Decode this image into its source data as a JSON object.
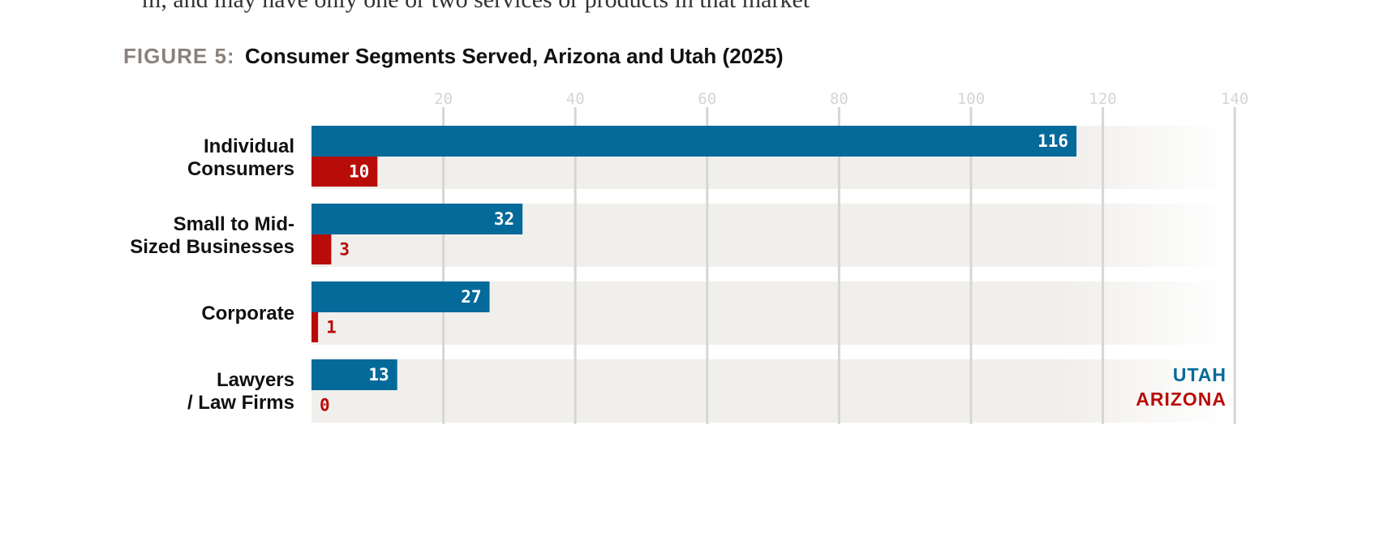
{
  "page": {
    "cut_text": "m, and may have only one or two services or products in that market"
  },
  "chart_data": {
    "type": "bar",
    "orientation": "horizontal",
    "title_prefix": "FIGURE 5:",
    "title": "Consumer Segments Served, Arizona and Utah (2025)",
    "categories": [
      [
        "Individual",
        "Consumers"
      ],
      [
        "Small to Mid-",
        "Sized Businesses"
      ],
      [
        "Corporate"
      ],
      [
        "Lawyers",
        "/ Law Firms"
      ]
    ],
    "series": [
      {
        "name": "UTAH",
        "color": "#046a99",
        "values": [
          116,
          32,
          27,
          13
        ]
      },
      {
        "name": "ARIZONA",
        "color": "#b80c09",
        "values": [
          10,
          3,
          1,
          0
        ]
      }
    ],
    "xlim": [
      0,
      140
    ],
    "xticks": [
      20,
      40,
      60,
      80,
      100,
      120,
      140
    ],
    "grid": true,
    "legend_position": "bottom-right"
  }
}
